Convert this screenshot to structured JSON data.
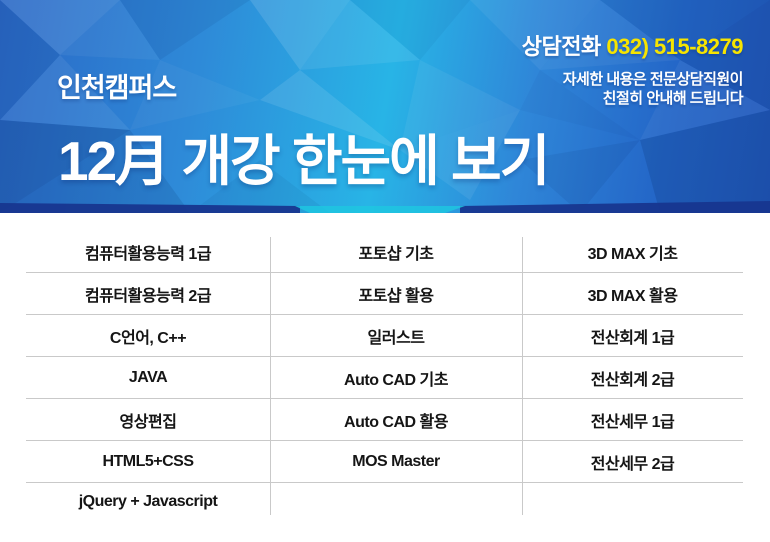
{
  "header": {
    "campus_label": "인천캠퍼스",
    "title": "12月 개강 한눈에 보기",
    "contact": {
      "label": "상담전화 ",
      "phone": "032) 515-8279",
      "note_line1": "자세한 내용은 전문상담직원이",
      "note_line2": "친절히 안내해 드립니다"
    },
    "colors": {
      "phone_yellow": "#f6e400",
      "base_blue_left": "#2b68c6",
      "base_cyan_center": "#28b4e6",
      "base_blue_right": "#2258ba",
      "bottom_band_navy": "#17368f",
      "bottom_band_teal": "#1ec6e0"
    }
  },
  "schedule_table": {
    "border_color": "#c9c9c9",
    "text_color": "#151515",
    "columns": 3,
    "rows": [
      [
        "컴퓨터활용능력 1급",
        "포토샵 기초",
        "3D MAX 기초"
      ],
      [
        "컴퓨터활용능력 2급",
        "포토샵 활용",
        "3D MAX 활용"
      ],
      [
        "C언어, C++",
        "일러스트",
        "전산회계 1급"
      ],
      [
        "JAVA",
        "Auto CAD 기초",
        "전산회계 2급"
      ],
      [
        "영상편집",
        "Auto CAD 활용",
        "전산세무 1급"
      ],
      [
        "HTML5+CSS",
        "MOS Master",
        "전산세무 2급"
      ],
      [
        "jQuery + Javascript",
        "",
        ""
      ]
    ]
  }
}
